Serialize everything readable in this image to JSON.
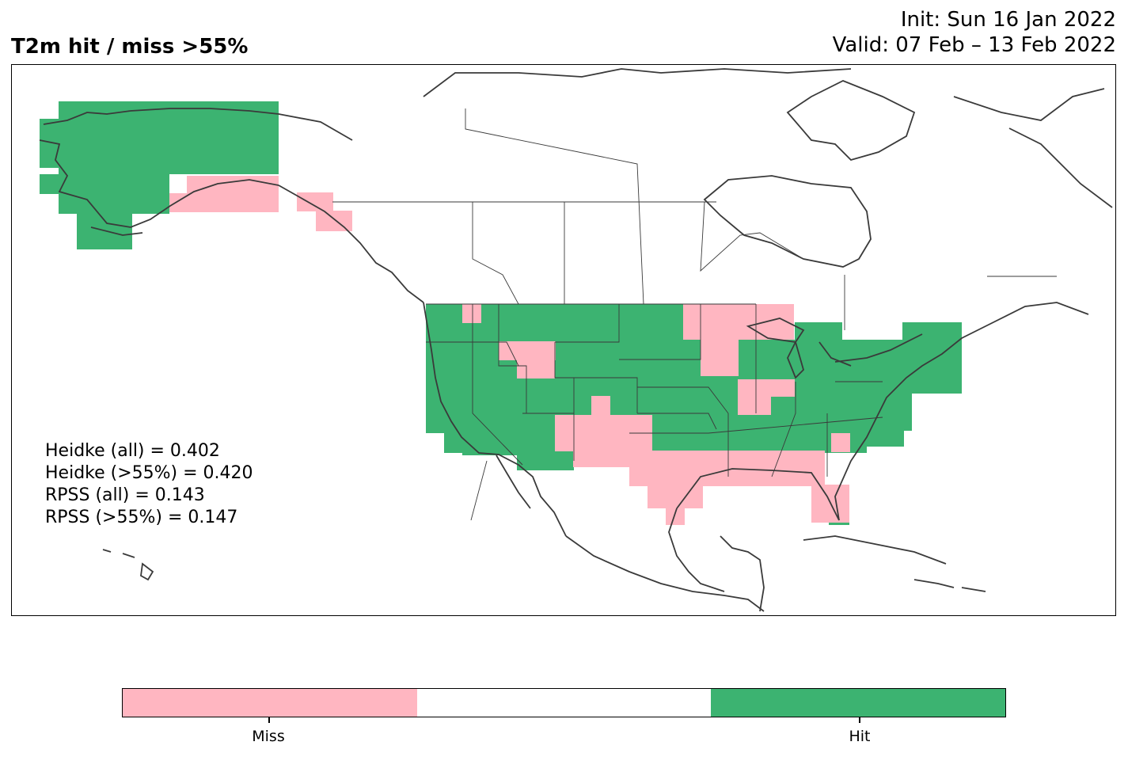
{
  "title": "T2m hit / miss  >55%",
  "init_text": "Init: Sun 16 Jan 2022",
  "valid_text": "Valid: 07 Feb – 13 Feb 2022",
  "stats": [
    "Heidke (all) = 0.402",
    "Heidke (>55%) = 0.420",
    "RPSS (all) = 0.143",
    "RPSS (>55%) = 0.147"
  ],
  "colors": {
    "miss": "#ffb6c1",
    "neutral": "#ffffff",
    "hit": "#3cb371",
    "coast": "#3a3a3a"
  },
  "colorbar": {
    "miss_label": "Miss",
    "hit_label": "Hit"
  }
}
